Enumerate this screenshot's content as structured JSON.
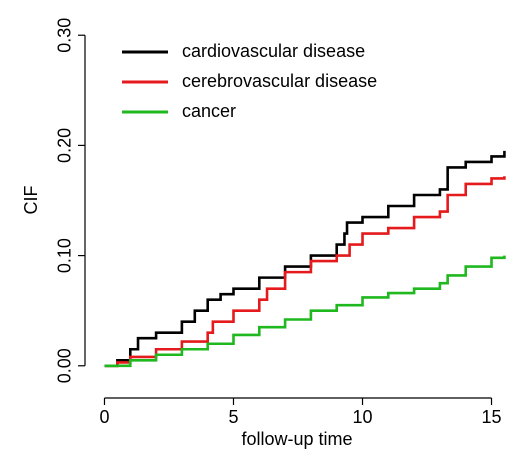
{
  "chart_data": {
    "type": "step",
    "x_label": "follow-up time",
    "y_label": "CIF",
    "xlim": [
      -0.6,
      15.6
    ],
    "ylim": [
      -0.012,
      0.312
    ],
    "xticks": [
      0,
      5,
      10,
      15
    ],
    "yticks": [
      {
        "value": 0,
        "label": "0.00"
      },
      {
        "value": 0.1,
        "label": "0.10"
      },
      {
        "value": 0.2,
        "label": "0.20"
      },
      {
        "value": 0.3,
        "label": "0.30"
      }
    ],
    "legend": "top-left",
    "series": [
      {
        "name": "cardiovascular disease",
        "color": "#000000",
        "x": [
          0,
          0.5,
          1,
          1.3,
          2,
          3,
          3.5,
          4,
          4.5,
          5,
          6,
          7,
          8,
          9,
          9.3,
          9.4,
          10,
          11,
          12,
          13,
          13.3,
          14,
          15,
          15.5
        ],
        "values": [
          0,
          0.005,
          0.015,
          0.025,
          0.03,
          0.04,
          0.05,
          0.06,
          0.065,
          0.07,
          0.08,
          0.09,
          0.1,
          0.11,
          0.12,
          0.13,
          0.135,
          0.145,
          0.155,
          0.16,
          0.18,
          0.185,
          0.19,
          0.195
        ]
      },
      {
        "name": "cerebrovascular disease",
        "color": "#e41a1c",
        "x": [
          0,
          0.5,
          1,
          2,
          3,
          4,
          4.2,
          5,
          6,
          6.3,
          7,
          8,
          9,
          9.5,
          10,
          11,
          12,
          13,
          13.3,
          14,
          15,
          15.5
        ],
        "values": [
          0,
          0.003,
          0.008,
          0.015,
          0.022,
          0.03,
          0.04,
          0.05,
          0.06,
          0.07,
          0.085,
          0.095,
          0.1,
          0.11,
          0.12,
          0.125,
          0.135,
          0.14,
          0.155,
          0.165,
          0.17,
          0.172
        ]
      },
      {
        "name": "cancer",
        "color": "#1fb81f",
        "x": [
          0,
          1,
          2,
          3,
          4,
          5,
          6,
          7,
          8,
          9,
          10,
          11,
          12,
          13,
          13.3,
          14,
          15,
          15.5
        ],
        "values": [
          0,
          0.005,
          0.01,
          0.015,
          0.02,
          0.028,
          0.035,
          0.042,
          0.05,
          0.055,
          0.062,
          0.066,
          0.07,
          0.075,
          0.082,
          0.09,
          0.098,
          0.1
        ]
      }
    ]
  }
}
